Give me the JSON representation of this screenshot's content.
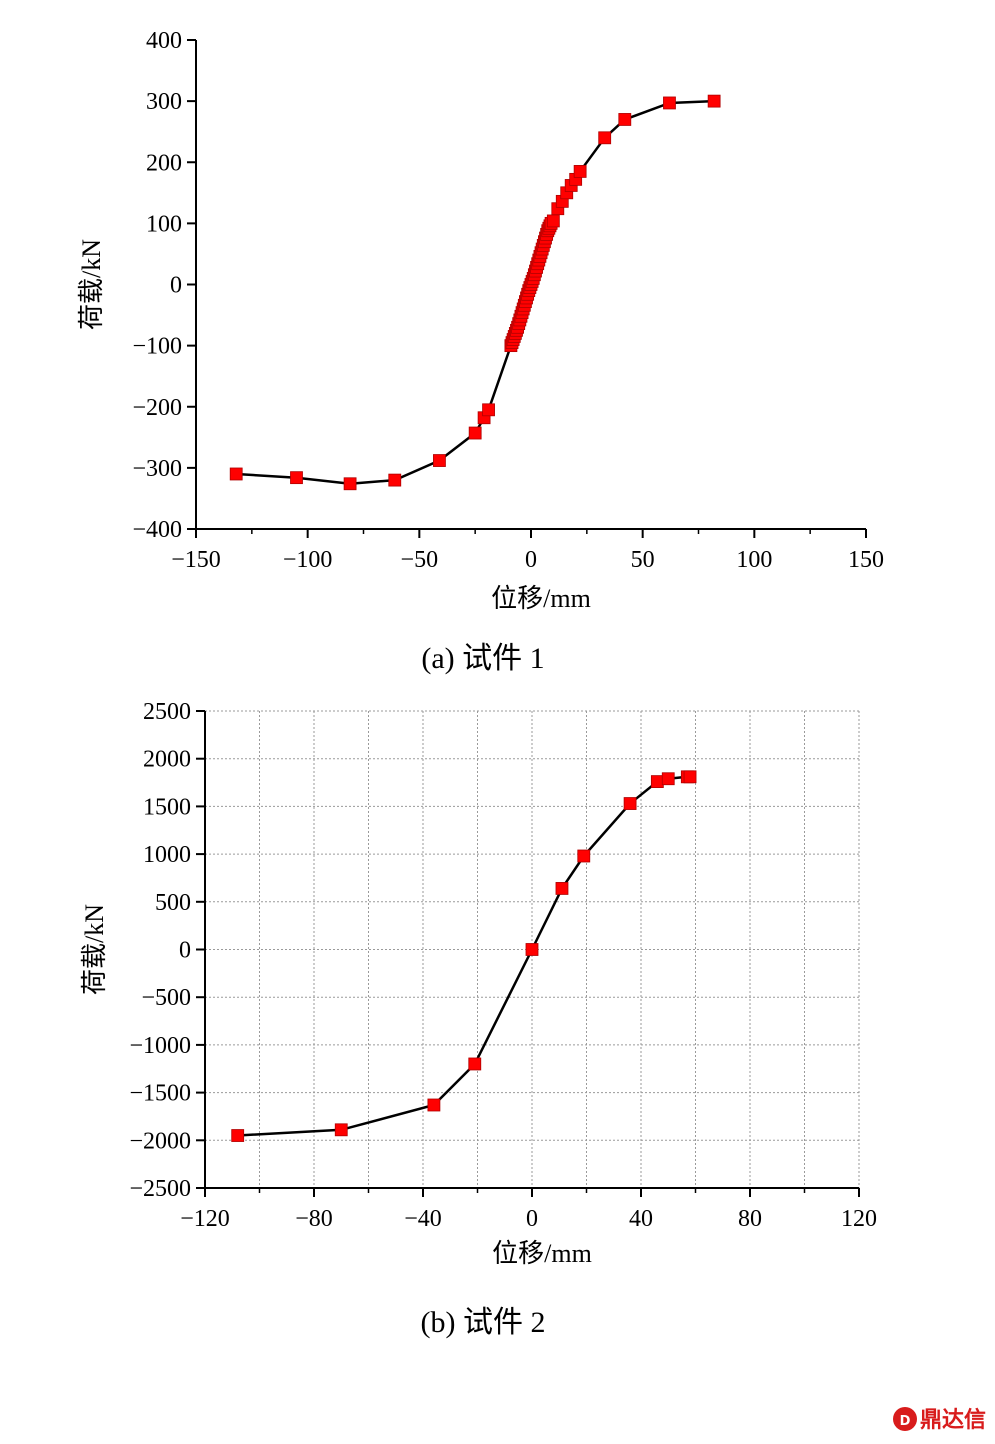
{
  "chart_data": [
    {
      "type": "line",
      "xlabel": "位移/mm",
      "ylabel": "荷载/kN",
      "caption": "(a)  试件 1",
      "xlim": [
        -150,
        150
      ],
      "ylim": [
        -400,
        400
      ],
      "xticks": [
        -150,
        -100,
        -50,
        0,
        50,
        100,
        150
      ],
      "yticks": [
        -400,
        -300,
        -200,
        -100,
        0,
        100,
        200,
        300,
        400
      ],
      "grid": false,
      "marker_color": "#ff0000",
      "line_color": "#000000",
      "series": [
        {
          "x": [
            -132,
            -105,
            -81,
            -61,
            -41,
            -25,
            -21,
            -19,
            -9,
            -8.5,
            -8,
            -7.5,
            -7,
            -6.5,
            -6,
            -5.5,
            -5,
            -4.5,
            -4,
            -3.5,
            -3,
            -2.5,
            -2,
            -1.5,
            -1,
            -0.5,
            0,
            0.5,
            1,
            1.5,
            2,
            2.5,
            3,
            3.5,
            4,
            4.5,
            5,
            5.5,
            6,
            6.5,
            7,
            7.5,
            8,
            8.5,
            9,
            10,
            12,
            14,
            16,
            18,
            20,
            22,
            33,
            42,
            62,
            82
          ],
          "y": [
            -310,
            -316,
            -326,
            -320,
            -288,
            -243,
            -218,
            -205,
            -100,
            -95,
            -90,
            -85,
            -80,
            -75,
            -70,
            -64,
            -58,
            -52,
            -46,
            -40,
            -34,
            -28,
            -22,
            -16,
            -10,
            -5,
            0,
            5,
            10,
            16,
            22,
            28,
            34,
            40,
            46,
            52,
            58,
            64,
            70,
            76,
            82,
            88,
            92,
            96,
            100,
            104,
            124,
            136,
            150,
            162,
            172,
            185,
            240,
            270,
            297,
            300
          ]
        }
      ]
    },
    {
      "type": "line",
      "xlabel": "位移/mm",
      "ylabel": "荷载/kN",
      "caption": "(b)  试件 2",
      "xlim": [
        -120,
        120
      ],
      "ylim": [
        -2500,
        2500
      ],
      "xticks": [
        -120,
        -80,
        -40,
        0,
        40,
        80,
        120
      ],
      "yticks": [
        -2500,
        -2000,
        -1500,
        -1000,
        -500,
        0,
        500,
        1000,
        1500,
        2000,
        2500
      ],
      "grid": true,
      "marker_color": "#ff0000",
      "line_color": "#000000",
      "series": [
        {
          "x": [
            -108,
            -70,
            -36,
            -21,
            0,
            11,
            19,
            36,
            46,
            50,
            57,
            58
          ],
          "y": [
            -1950,
            -1890,
            -1630,
            -1200,
            0,
            640,
            980,
            1530,
            1760,
            1790,
            1810,
            1810
          ]
        }
      ]
    }
  ],
  "watermark": {
    "text": "鼎达信"
  }
}
